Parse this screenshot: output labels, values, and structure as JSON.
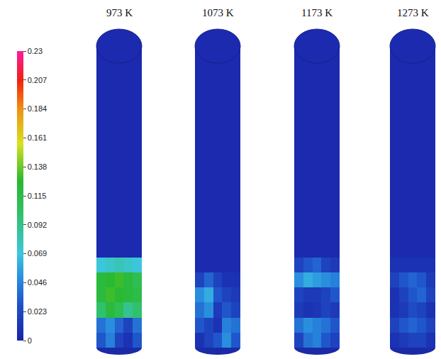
{
  "chart_data": {
    "type": "heatmap",
    "panels": [
      {
        "title": "973 K",
        "cells": [
          [
            0.03,
            0.045,
            0.02,
            0.01,
            0.03
          ],
          [
            0.04,
            0.05,
            0.035,
            0.02,
            0.04
          ],
          [
            0.1,
            0.12,
            0.11,
            0.09,
            0.1
          ],
          [
            0.12,
            0.13,
            0.125,
            0.12,
            0.115
          ],
          [
            0.12,
            0.125,
            0.13,
            0.12,
            0.11
          ],
          [
            0.07,
            0.075,
            0.08,
            0.075,
            0.07
          ],
          [
            0.005,
            0.005,
            0.005,
            0.005,
            0.005
          ],
          [
            0.005,
            0.005,
            0.005,
            0.005,
            0.005
          ],
          [
            0.005,
            0.005,
            0.005,
            0.005,
            0.005
          ],
          [
            0.005,
            0.005,
            0.005,
            0.005,
            0.005
          ],
          [
            0.005,
            0.005,
            0.005,
            0.005,
            0.005
          ],
          [
            0.005,
            0.005,
            0.005,
            0.005,
            0.005
          ],
          [
            0.005,
            0.005,
            0.005,
            0.005,
            0.005
          ],
          [
            0.005,
            0.005,
            0.005,
            0.005,
            0.005
          ],
          [
            0.005,
            0.005,
            0.005,
            0.005,
            0.005
          ],
          [
            0.005,
            0.005,
            0.005,
            0.005,
            0.005
          ],
          [
            0.005,
            0.005,
            0.005,
            0.005,
            0.005
          ],
          [
            0.005,
            0.005,
            0.005,
            0.005,
            0.005
          ],
          [
            0.005,
            0.005,
            0.005,
            0.005,
            0.005
          ],
          [
            0.005,
            0.005,
            0.005,
            0.005,
            0.005
          ]
        ]
      },
      {
        "title": "1073 K",
        "cells": [
          [
            0.01,
            0.02,
            0.03,
            0.05,
            0.03
          ],
          [
            0.03,
            0.02,
            0.01,
            0.045,
            0.04
          ],
          [
            0.04,
            0.05,
            0.015,
            0.03,
            0.02
          ],
          [
            0.05,
            0.06,
            0.03,
            0.02,
            0.015
          ],
          [
            0.02,
            0.035,
            0.02,
            0.01,
            0.01
          ],
          [
            0.005,
            0.005,
            0.005,
            0.005,
            0.005
          ],
          [
            0.005,
            0.005,
            0.005,
            0.005,
            0.005
          ],
          [
            0.005,
            0.005,
            0.005,
            0.005,
            0.005
          ],
          [
            0.005,
            0.005,
            0.005,
            0.005,
            0.005
          ],
          [
            0.005,
            0.005,
            0.005,
            0.005,
            0.005
          ],
          [
            0.005,
            0.005,
            0.005,
            0.005,
            0.005
          ],
          [
            0.005,
            0.005,
            0.005,
            0.005,
            0.005
          ],
          [
            0.005,
            0.005,
            0.005,
            0.005,
            0.005
          ],
          [
            0.005,
            0.005,
            0.005,
            0.005,
            0.005
          ],
          [
            0.005,
            0.005,
            0.005,
            0.005,
            0.005
          ],
          [
            0.005,
            0.005,
            0.005,
            0.005,
            0.005
          ],
          [
            0.005,
            0.005,
            0.005,
            0.005,
            0.005
          ],
          [
            0.005,
            0.005,
            0.005,
            0.005,
            0.005
          ],
          [
            0.005,
            0.005,
            0.005,
            0.005,
            0.005
          ],
          [
            0.005,
            0.005,
            0.005,
            0.005,
            0.005
          ]
        ]
      },
      {
        "title": "1173 K",
        "cells": [
          [
            0.02,
            0.04,
            0.045,
            0.03,
            0.02
          ],
          [
            0.04,
            0.05,
            0.045,
            0.04,
            0.03
          ],
          [
            0.015,
            0.01,
            0.012,
            0.02,
            0.015
          ],
          [
            0.02,
            0.015,
            0.015,
            0.02,
            0.03
          ],
          [
            0.05,
            0.06,
            0.055,
            0.05,
            0.045
          ],
          [
            0.02,
            0.03,
            0.035,
            0.02,
            0.015
          ],
          [
            0.005,
            0.005,
            0.005,
            0.005,
            0.005
          ],
          [
            0.005,
            0.005,
            0.005,
            0.005,
            0.005
          ],
          [
            0.005,
            0.005,
            0.005,
            0.005,
            0.005
          ],
          [
            0.005,
            0.005,
            0.005,
            0.005,
            0.005
          ],
          [
            0.005,
            0.005,
            0.005,
            0.005,
            0.005
          ],
          [
            0.005,
            0.005,
            0.005,
            0.005,
            0.005
          ],
          [
            0.005,
            0.005,
            0.005,
            0.005,
            0.005
          ],
          [
            0.005,
            0.005,
            0.005,
            0.005,
            0.005
          ],
          [
            0.005,
            0.005,
            0.005,
            0.005,
            0.005
          ],
          [
            0.005,
            0.005,
            0.005,
            0.005,
            0.005
          ],
          [
            0.005,
            0.005,
            0.005,
            0.005,
            0.005
          ],
          [
            0.005,
            0.005,
            0.005,
            0.005,
            0.005
          ],
          [
            0.005,
            0.005,
            0.005,
            0.005,
            0.005
          ],
          [
            0.005,
            0.005,
            0.005,
            0.005,
            0.005
          ]
        ]
      },
      {
        "title": "1273 K",
        "cells": [
          [
            0.01,
            0.015,
            0.02,
            0.02,
            0.01
          ],
          [
            0.02,
            0.03,
            0.035,
            0.03,
            0.02
          ],
          [
            0.01,
            0.015,
            0.025,
            0.02,
            0.01
          ],
          [
            0.01,
            0.02,
            0.03,
            0.035,
            0.02
          ],
          [
            0.02,
            0.03,
            0.035,
            0.03,
            0.015
          ],
          [
            0.01,
            0.01,
            0.01,
            0.01,
            0.01
          ],
          [
            0.005,
            0.005,
            0.005,
            0.005,
            0.005
          ],
          [
            0.005,
            0.005,
            0.005,
            0.005,
            0.005
          ],
          [
            0.005,
            0.005,
            0.005,
            0.005,
            0.005
          ],
          [
            0.005,
            0.005,
            0.005,
            0.005,
            0.005
          ],
          [
            0.005,
            0.005,
            0.005,
            0.005,
            0.005
          ],
          [
            0.005,
            0.005,
            0.005,
            0.005,
            0.005
          ],
          [
            0.005,
            0.005,
            0.005,
            0.005,
            0.005
          ],
          [
            0.005,
            0.005,
            0.005,
            0.005,
            0.005
          ],
          [
            0.005,
            0.005,
            0.005,
            0.005,
            0.005
          ],
          [
            0.005,
            0.005,
            0.005,
            0.005,
            0.005
          ],
          [
            0.005,
            0.005,
            0.005,
            0.005,
            0.005
          ],
          [
            0.005,
            0.005,
            0.005,
            0.005,
            0.005
          ],
          [
            0.005,
            0.005,
            0.005,
            0.005,
            0.005
          ],
          [
            0.005,
            0.005,
            0.005,
            0.005,
            0.005
          ]
        ]
      }
    ],
    "colorbar_range": [
      0,
      0.23
    ],
    "colorbar_ticks": [
      0,
      0.023,
      0.046,
      0.069,
      0.092,
      0.115,
      0.138,
      0.161,
      0.184,
      0.207,
      0.23
    ]
  }
}
